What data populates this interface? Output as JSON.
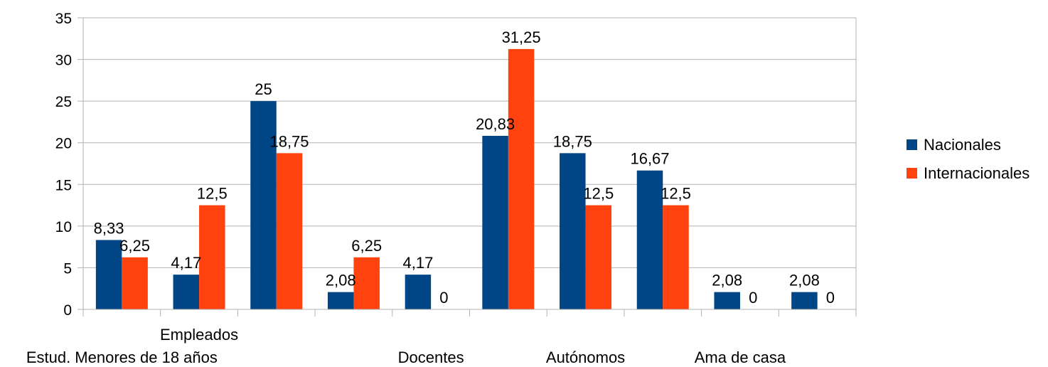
{
  "chart_data": {
    "type": "bar",
    "categories": [
      "Estud. Menores de 18 años",
      "Empleados",
      "",
      "",
      "Docentes",
      "",
      "Autónomos",
      "",
      "Ama de casa",
      ""
    ],
    "series": [
      {
        "name": "Nacionales",
        "color": "#004586",
        "values": [
          8.33,
          4.17,
          25,
          2.08,
          4.17,
          20.83,
          18.75,
          16.67,
          2.08,
          2.08
        ],
        "labels": [
          "8,33",
          "4,17",
          "25",
          "2,08",
          "4,17",
          "20,83",
          "18,75",
          "16,67",
          "2,08",
          "2,08"
        ]
      },
      {
        "name": "Internacionales",
        "color": "#ff420e",
        "values": [
          6.25,
          12.5,
          18.75,
          6.25,
          0,
          31.25,
          12.5,
          12.5,
          0,
          0
        ],
        "labels": [
          "6,25",
          "12,5",
          "18,75",
          "6,25",
          "0",
          "31,25",
          "12,5",
          "12,5",
          "0",
          "0"
        ]
      }
    ],
    "ylim": [
      0,
      35
    ],
    "yticks": [
      "0",
      "5",
      "10",
      "15",
      "20",
      "25",
      "30",
      "35"
    ],
    "grid": true,
    "legend_position": "right"
  }
}
